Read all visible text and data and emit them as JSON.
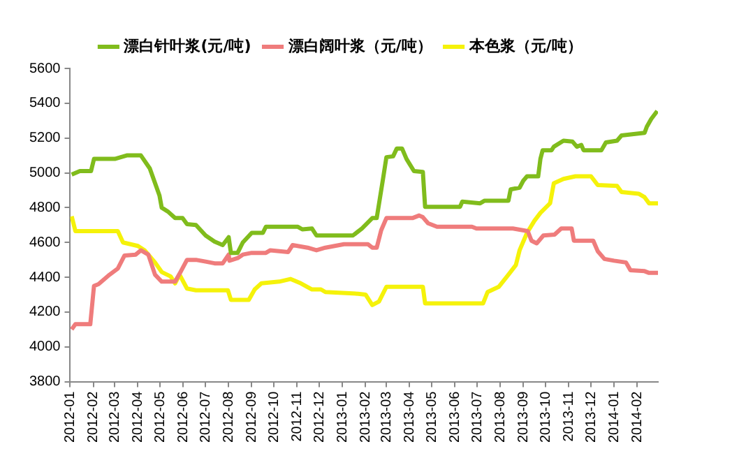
{
  "chart_data": {
    "type": "line",
    "legend": "top",
    "grid": false,
    "marker": "none",
    "line_style": "solid",
    "xlim": [
      "2012-01-01",
      "2014-03-01"
    ],
    "xticks": [
      "2012-01",
      "2012-02",
      "2012-03",
      "2012-04",
      "2012-05",
      "2012-06",
      "2012-07",
      "2012-08",
      "2012-09",
      "2012-10",
      "2012-11",
      "2012-12",
      "2013-01",
      "2013-02",
      "2013-03",
      "2013-04",
      "2013-05",
      "2013-06",
      "2013-07",
      "2013-08",
      "2013-09",
      "2013-10",
      "2013-11",
      "2013-12",
      "2014-01",
      "2014-02"
    ],
    "ylim": [
      3800,
      5600
    ],
    "yticks": [
      3800,
      4000,
      4200,
      4400,
      4600,
      4800,
      5000,
      5200,
      5400,
      5600
    ],
    "series": [
      {
        "name": "漂白针叶浆(元/吨)",
        "color": "#80bc1c",
        "x": [
          "2012-01-03",
          "2012-01-14",
          "2012-01-29",
          "2012-02-02",
          "2012-03-01",
          "2012-03-17",
          "2012-04-05",
          "2012-04-17",
          "2012-04-30",
          "2012-05-03",
          "2012-05-12",
          "2012-05-21",
          "2012-05-31",
          "2012-06-06",
          "2012-06-18",
          "2012-07-01",
          "2012-07-13",
          "2012-07-24",
          "2012-08-01",
          "2012-08-04",
          "2012-08-13",
          "2012-08-20",
          "2012-09-01",
          "2012-09-16",
          "2012-09-20",
          "2012-11-02",
          "2012-11-08",
          "2012-11-21",
          "2012-11-27",
          "2013-01-15",
          "2013-01-27",
          "2013-02-10",
          "2013-02-16",
          "2013-02-25",
          "2013-03-01",
          "2013-03-10",
          "2013-03-15",
          "2013-03-22",
          "2013-03-28",
          "2013-04-07",
          "2013-04-19",
          "2013-04-22",
          "2013-06-08",
          "2013-06-11",
          "2013-07-05",
          "2013-07-11",
          "2013-08-12",
          "2013-08-15",
          "2013-08-27",
          "2013-09-01",
          "2013-09-06",
          "2013-09-21",
          "2013-09-24",
          "2013-09-27",
          "2013-10-09",
          "2013-10-12",
          "2013-10-25",
          "2013-11-06",
          "2013-11-12",
          "2013-11-18",
          "2013-11-21",
          "2013-12-15",
          "2013-12-21",
          "2014-01-05",
          "2014-01-11",
          "2014-02-11",
          "2014-02-14",
          "2014-02-20",
          "2014-02-28"
        ],
        "values": [
          4990,
          5010,
          5010,
          5080,
          5080,
          5100,
          5100,
          5025,
          4870,
          4800,
          4775,
          4740,
          4740,
          4705,
          4700,
          4640,
          4605,
          4585,
          4630,
          4540,
          4540,
          4600,
          4655,
          4655,
          4690,
          4690,
          4675,
          4680,
          4640,
          4640,
          4680,
          4740,
          4740,
          4980,
          5090,
          5095,
          5140,
          5140,
          5080,
          5010,
          5005,
          4805,
          4805,
          4835,
          4825,
          4840,
          4840,
          4905,
          4915,
          4955,
          4980,
          4980,
          5080,
          5130,
          5130,
          5150,
          5185,
          5180,
          5150,
          5160,
          5130,
          5130,
          5175,
          5185,
          5215,
          5230,
          5265,
          5310,
          5355
        ]
      },
      {
        "name": "漂白阔叶浆（元/吨）",
        "color": "#ef7c7c",
        "x": [
          "2012-01-03",
          "2012-01-08",
          "2012-01-28",
          "2012-02-02",
          "2012-02-08",
          "2012-02-23",
          "2012-03-05",
          "2012-03-14",
          "2012-03-29",
          "2012-04-05",
          "2012-04-15",
          "2012-04-24",
          "2012-05-03",
          "2012-05-21",
          "2012-05-27",
          "2012-06-06",
          "2012-06-18",
          "2012-07-01",
          "2012-07-13",
          "2012-07-24",
          "2012-08-01",
          "2012-08-02",
          "2012-08-13",
          "2012-08-20",
          "2012-09-01",
          "2012-09-20",
          "2012-09-26",
          "2012-10-20",
          "2012-10-26",
          "2012-11-15",
          "2012-11-27",
          "2012-12-09",
          "2013-01-03",
          "2013-02-04",
          "2013-02-10",
          "2013-02-16",
          "2013-02-22",
          "2013-03-01",
          "2013-04-05",
          "2013-04-14",
          "2013-04-19",
          "2013-04-26",
          "2013-05-08",
          "2013-06-24",
          "2013-06-30",
          "2013-08-18",
          "2013-09-07",
          "2013-09-12",
          "2013-09-19",
          "2013-09-28",
          "2013-10-13",
          "2013-10-22",
          "2013-11-05",
          "2013-11-08",
          "2013-12-04",
          "2013-12-10",
          "2013-12-19",
          "2014-01-01",
          "2014-01-17",
          "2014-01-23",
          "2014-02-11",
          "2014-02-17",
          "2014-03-01"
        ],
        "values": [
          4100,
          4130,
          4130,
          4350,
          4360,
          4415,
          4450,
          4525,
          4530,
          4555,
          4530,
          4415,
          4375,
          4375,
          4420,
          4500,
          4500,
          4490,
          4480,
          4480,
          4530,
          4495,
          4510,
          4530,
          4540,
          4540,
          4555,
          4545,
          4585,
          4570,
          4555,
          4570,
          4590,
          4590,
          4570,
          4570,
          4670,
          4740,
          4740,
          4755,
          4745,
          4710,
          4690,
          4690,
          4680,
          4680,
          4665,
          4610,
          4595,
          4640,
          4645,
          4680,
          4680,
          4610,
          4610,
          4550,
          4505,
          4495,
          4485,
          4440,
          4435,
          4425,
          4425
        ]
      },
      {
        "name": "本色浆（元/吨）",
        "color": "#f5f20a",
        "x": [
          "2012-01-03",
          "2012-01-08",
          "2012-03-05",
          "2012-03-12",
          "2012-04-01",
          "2012-04-10",
          "2012-04-24",
          "2012-05-03",
          "2012-05-15",
          "2012-05-21",
          "2012-05-27",
          "2012-06-06",
          "2012-06-18",
          "2012-07-31",
          "2012-08-04",
          "2012-08-28",
          "2012-09-05",
          "2012-09-14",
          "2012-10-08",
          "2012-10-23",
          "2012-11-06",
          "2012-11-21",
          "2012-12-03",
          "2012-12-09",
          "2013-01-22",
          "2013-02-01",
          "2013-02-10",
          "2013-02-19",
          "2013-03-01",
          "2013-04-19",
          "2013-04-22",
          "2013-07-09",
          "2013-07-15",
          "2013-07-30",
          "2013-08-12",
          "2013-08-22",
          "2013-08-27",
          "2013-09-06",
          "2013-09-16",
          "2013-09-24",
          "2013-10-07",
          "2013-10-12",
          "2013-10-25",
          "2013-11-10",
          "2013-12-01",
          "2013-12-10",
          "2014-01-05",
          "2014-01-11",
          "2014-02-03",
          "2014-02-11",
          "2014-02-17",
          "2014-03-01"
        ],
        "values": [
          4750,
          4665,
          4665,
          4600,
          4580,
          4555,
          4485,
          4430,
          4405,
          4365,
          4415,
          4335,
          4325,
          4325,
          4270,
          4270,
          4330,
          4365,
          4375,
          4390,
          4365,
          4330,
          4330,
          4315,
          4305,
          4300,
          4240,
          4260,
          4345,
          4345,
          4250,
          4250,
          4315,
          4345,
          4415,
          4470,
          4555,
          4655,
          4725,
          4770,
          4825,
          4940,
          4965,
          4980,
          4980,
          4930,
          4925,
          4890,
          4880,
          4860,
          4825,
          4825
        ]
      }
    ]
  }
}
